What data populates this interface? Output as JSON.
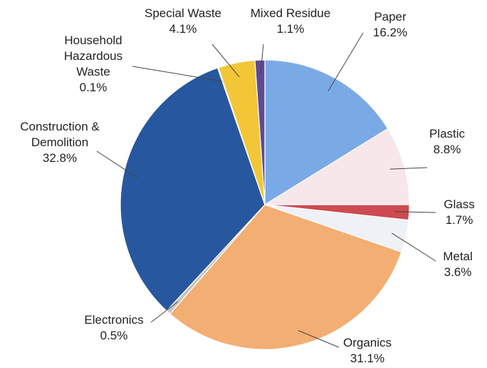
{
  "chart_data": {
    "type": "pie",
    "title": "",
    "legend": "none",
    "slices": [
      {
        "name": "Paper",
        "value": 16.2,
        "label": "16.2%",
        "color": "#7aaae6"
      },
      {
        "name": "Plastic",
        "value": 8.8,
        "label": "8.8%",
        "color": "#f7e6ea"
      },
      {
        "name": "Glass",
        "value": 1.7,
        "label": "1.7%",
        "color": "#cd4a50"
      },
      {
        "name": "Metal",
        "value": 3.6,
        "label": "3.6%",
        "color": "#eef1f6"
      },
      {
        "name": "Organics",
        "value": 31.1,
        "label": "31.1%",
        "color": "#f3ae73"
      },
      {
        "name": "Electronics",
        "value": 0.5,
        "label": "0.5%",
        "color": "#c4c4c4"
      },
      {
        "name": "Construction & Demolition",
        "value": 32.8,
        "label": "32.8%",
        "color": "#27579e"
      },
      {
        "name": "Household Hazardous Waste",
        "value": 0.1,
        "label": "0.1%",
        "color": "#6d8fc4"
      },
      {
        "name": "Special Waste",
        "value": 4.1,
        "label": "4.1%",
        "color": "#f2c637"
      },
      {
        "name": "Mixed Residue",
        "value": 1.1,
        "label": "1.1%",
        "color": "#5e4b92"
      }
    ]
  }
}
